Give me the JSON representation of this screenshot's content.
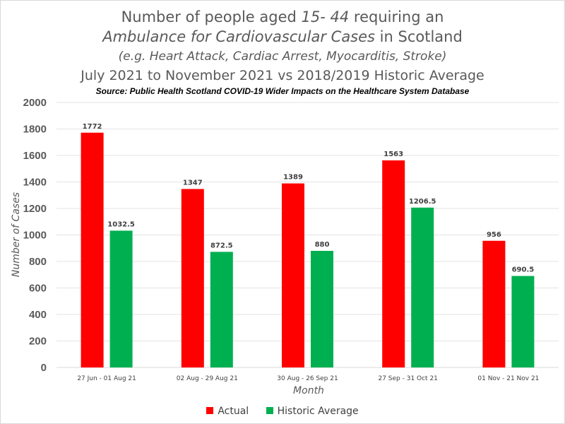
{
  "chart_data": {
    "type": "bar",
    "title_lines": {
      "line1_a": "Number of people aged ",
      "line1_b": "15- 44",
      "line1_c": " requiring an",
      "line2_a": "Ambulance for Cardiovascular Cases",
      "line2_b": " in Scotland",
      "line3": "(e.g. Heart Attack, Cardiac Arrest, Myocarditis, Stroke)",
      "line4": "July 2021 to November 2021 vs 2018/2019 Historic Average"
    },
    "subtitle": "Source: Public Health Scotland COVID-19 Wider Impacts on the Healthcare System Database",
    "xlabel": "Month",
    "ylabel": "Number of Cases",
    "ylim": [
      0,
      2000
    ],
    "yticks": [
      "0",
      "200",
      "400",
      "600",
      "800",
      "1000",
      "1200",
      "1400",
      "1600",
      "1800",
      "2000"
    ],
    "grid": true,
    "legend_position": "bottom",
    "categories": [
      "27 Jun - 01 Aug 21",
      "02 Aug - 29 Aug 21",
      "30 Aug - 26 Sep 21",
      "27 Sep - 31 Oct 21",
      "01 Nov - 21 Nov 21"
    ],
    "series": [
      {
        "name": "Actual",
        "color": "#ff0000",
        "values": [
          1772,
          1347,
          1389,
          1563,
          956
        ],
        "labels": [
          "1772",
          "1347",
          "1389",
          "1563",
          "956"
        ]
      },
      {
        "name": "Historic Average",
        "color": "#00b050",
        "values": [
          1032.5,
          872.5,
          880,
          1206.5,
          690.5
        ],
        "labels": [
          "1032.5",
          "872.5",
          "880",
          "1206.5",
          "690.5"
        ]
      }
    ]
  }
}
